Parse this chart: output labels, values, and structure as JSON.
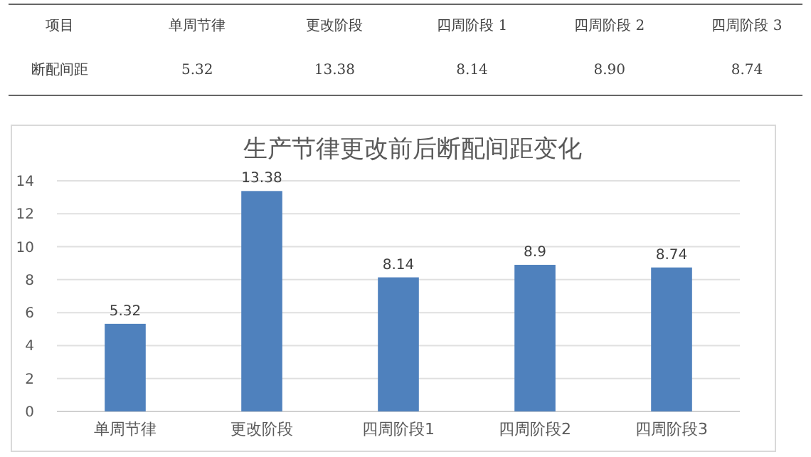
{
  "chart_data": [
    {
      "type": "other",
      "annotations": [
        "项目",
        "单周节律",
        "更改阶段",
        "四周阶段 1",
        "四周阶段 2",
        "四周阶段 3",
        "断配间距",
        "5.32",
        "13.38",
        "8.14",
        "8.90",
        "8.74"
      ]
    },
    {
      "type": "bar",
      "title": "生产节律更改前后断配间距变化",
      "categories": [
        "单周节律",
        "更改阶段",
        "四周阶段1",
        "四周阶段2",
        "四周阶段3"
      ],
      "values": [
        5.32,
        13.38,
        8.14,
        8.9,
        8.74
      ],
      "color": "#4f81bd",
      "ylim": [
        0,
        14
      ],
      "yticks": [
        0,
        2,
        4,
        6,
        8,
        10,
        12,
        14
      ],
      "grid": "y",
      "data_labels": true
    }
  ]
}
